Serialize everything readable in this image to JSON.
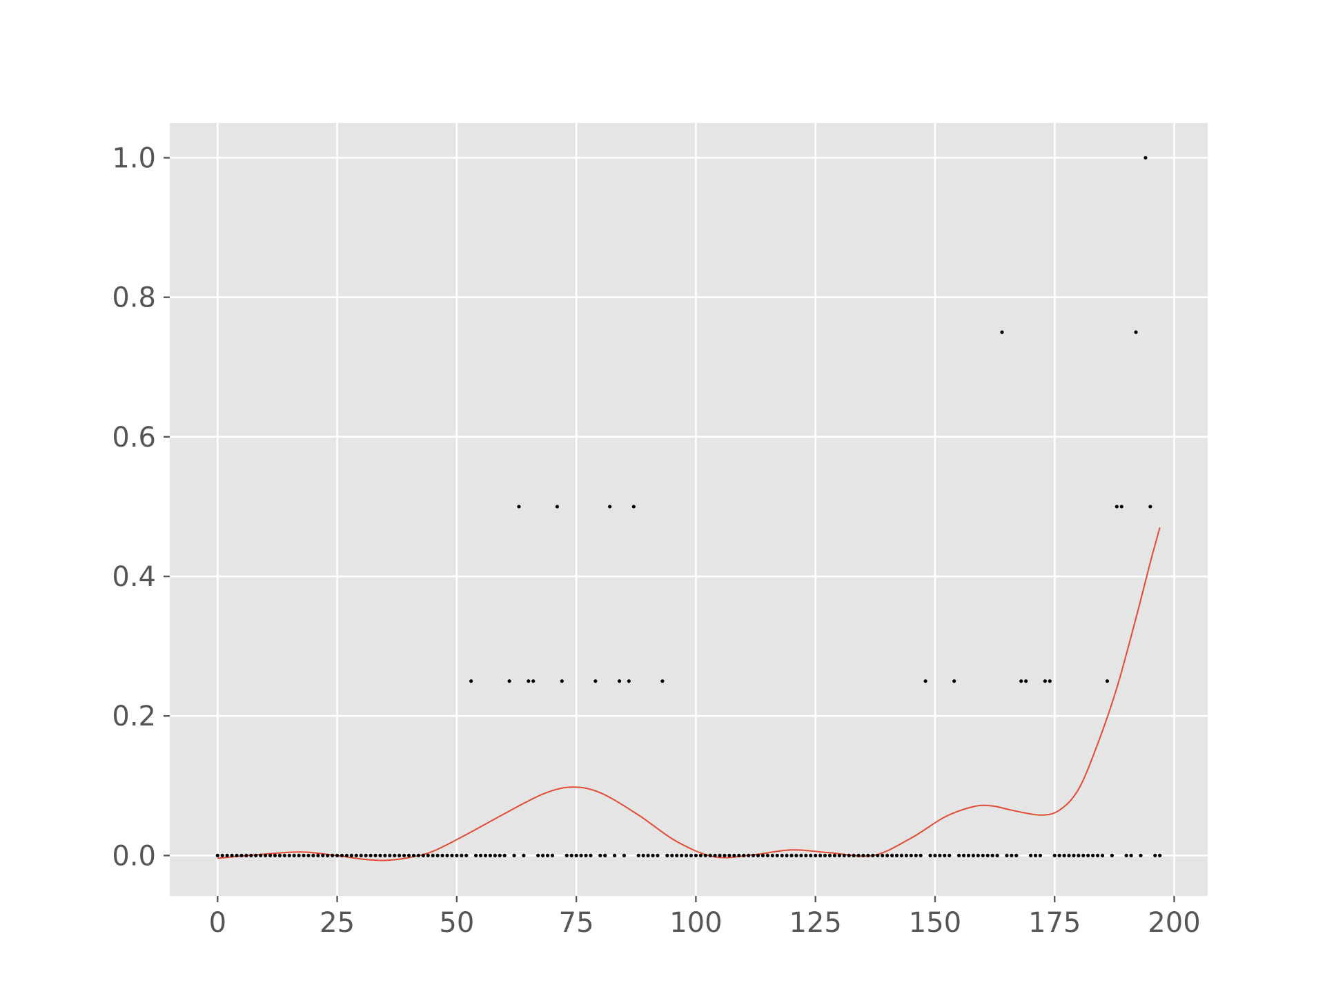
{
  "chart_data": {
    "type": "scatter",
    "style": "ggplot",
    "grid": true,
    "xlim": [
      -10,
      207
    ],
    "ylim": [
      -0.058,
      1.05
    ],
    "x_ticks": [
      0,
      25,
      50,
      75,
      100,
      125,
      150,
      175,
      200
    ],
    "x_tick_labels": [
      "0",
      "25",
      "50",
      "75",
      "100",
      "125",
      "150",
      "175",
      "200"
    ],
    "y_ticks": [
      0.0,
      0.2,
      0.4,
      0.6,
      0.8,
      1.0
    ],
    "y_tick_labels": [
      "0.0",
      "0.2",
      "0.4",
      "0.6",
      "0.8",
      "1.0"
    ],
    "colors": {
      "background": "#e5e5e5",
      "grid": "#ffffff",
      "points": "#000000",
      "curve": "#e24a33",
      "ticks": "#555555"
    },
    "points": {
      "marker_color": "#000000",
      "nonzero": [
        {
          "x": 53,
          "y": 0.25
        },
        {
          "x": 61,
          "y": 0.25
        },
        {
          "x": 63,
          "y": 0.5
        },
        {
          "x": 65,
          "y": 0.25
        },
        {
          "x": 66,
          "y": 0.25
        },
        {
          "x": 71,
          "y": 0.5
        },
        {
          "x": 72,
          "y": 0.25
        },
        {
          "x": 79,
          "y": 0.25
        },
        {
          "x": 82,
          "y": 0.5
        },
        {
          "x": 84,
          "y": 0.25
        },
        {
          "x": 86,
          "y": 0.25
        },
        {
          "x": 87,
          "y": 0.5
        },
        {
          "x": 93,
          "y": 0.25
        },
        {
          "x": 148,
          "y": 0.25
        },
        {
          "x": 154,
          "y": 0.25
        },
        {
          "x": 164,
          "y": 0.75
        },
        {
          "x": 168,
          "y": 0.25
        },
        {
          "x": 169,
          "y": 0.25
        },
        {
          "x": 173,
          "y": 0.25
        },
        {
          "x": 174,
          "y": 0.25
        },
        {
          "x": 186,
          "y": 0.25
        },
        {
          "x": 188,
          "y": 0.5
        },
        {
          "x": 189,
          "y": 0.5
        },
        {
          "x": 192,
          "y": 0.75
        },
        {
          "x": 194,
          "y": 1.0
        },
        {
          "x": 195,
          "y": 0.5
        }
      ],
      "zero_x_range": [
        0,
        197
      ],
      "zero_y": 0.0
    },
    "curve": {
      "color": "#e24a33",
      "x": [
        0,
        8,
        16,
        20,
        26,
        30,
        35,
        40,
        45,
        52,
        60,
        68,
        74,
        80,
        88,
        96,
        104,
        112,
        120,
        128,
        137,
        145,
        152,
        158,
        162,
        166,
        172,
        176,
        180,
        184,
        188,
        192,
        195,
        197
      ],
      "y": [
        -0.004,
        0.001,
        0.005,
        0.004,
        -0.001,
        -0.005,
        -0.007,
        -0.003,
        0.006,
        0.03,
        0.06,
        0.088,
        0.098,
        0.09,
        0.058,
        0.02,
        -0.002,
        0.001,
        0.008,
        0.004,
        0.0,
        0.025,
        0.055,
        0.07,
        0.071,
        0.065,
        0.058,
        0.065,
        0.095,
        0.16,
        0.24,
        0.34,
        0.42,
        0.47
      ]
    }
  }
}
